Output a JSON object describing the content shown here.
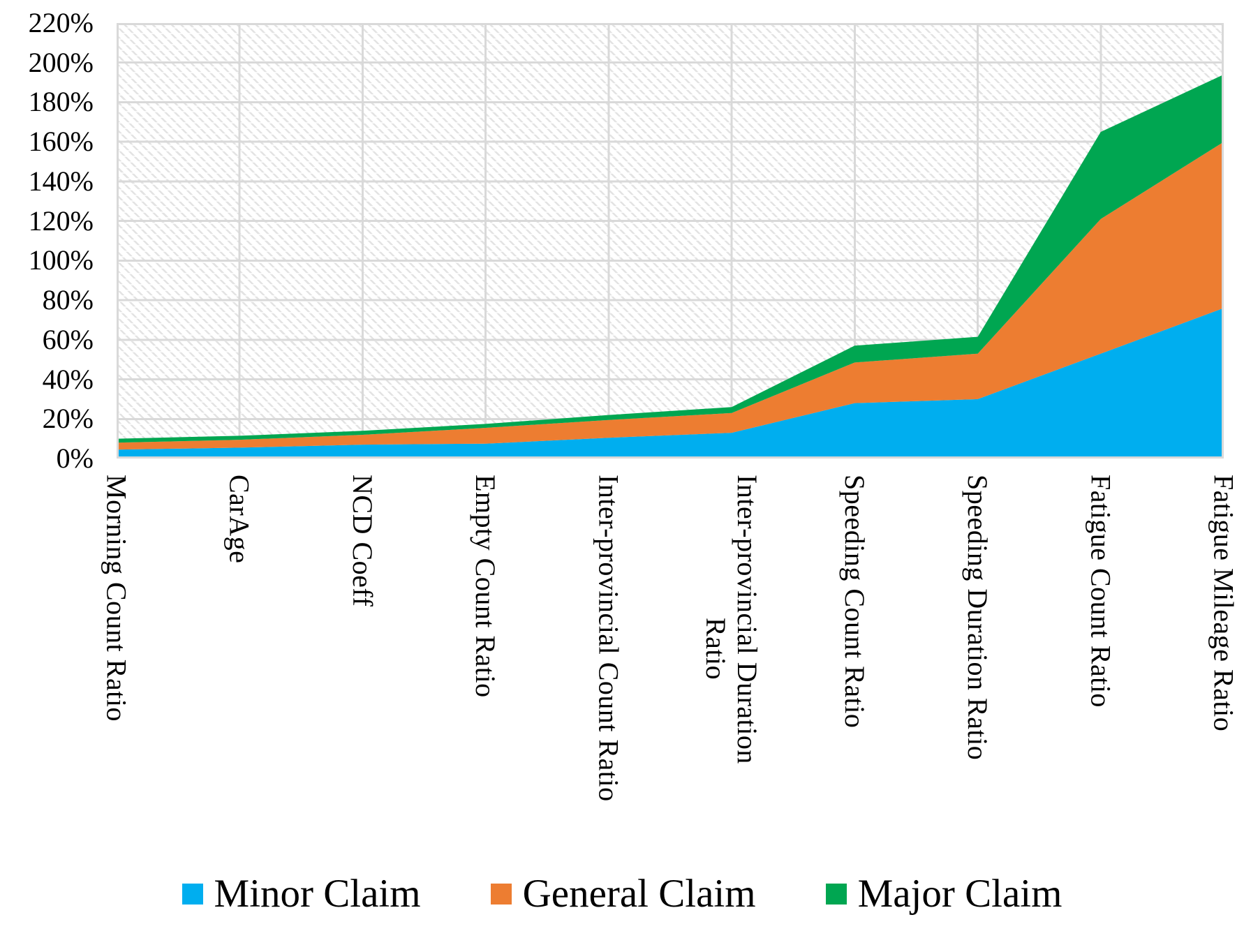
{
  "chart_data": {
    "type": "area",
    "stacked": true,
    "title": "",
    "categories": [
      "Morning Count Ratio",
      "CarAge",
      "NCD Coeff",
      "Empty Count Ratio",
      "Inter-provincial Count Ratio",
      "Inter-provincial Duration\nRatio",
      "Speeding Count Ratio",
      "Speeding Duration Ratio",
      "Fatigue Count Ratio",
      "Fatigue Mileage Ratio"
    ],
    "series": [
      {
        "name": "Minor Claim",
        "color": "#00AEEF",
        "values": [
          4.5,
          5.5,
          7,
          7.5,
          10.5,
          13,
          28,
          30,
          53,
          76
        ]
      },
      {
        "name": "General Claim",
        "color": "#ED7D31",
        "values": [
          3.5,
          4,
          5,
          8,
          9,
          10,
          20.5,
          23,
          68,
          84
        ]
      },
      {
        "name": "Major Claim",
        "color": "#00A651",
        "values": [
          2,
          2,
          2,
          2,
          2.5,
          3,
          8.5,
          8.5,
          44,
          34
        ]
      }
    ],
    "y_axis": {
      "min": 0,
      "max": 220,
      "step": 20,
      "tick_labels_top_to_bottom": [
        "220%",
        "200%",
        "180%",
        "160%",
        "140%",
        "120%",
        "100%",
        "80%",
        "60%",
        "40%",
        "20%",
        "0%"
      ]
    },
    "grid": {
      "horizontal": true,
      "vertical": true,
      "color": "#D9D9D9",
      "plot_background": "diagonal-hatch"
    },
    "legend_position": "bottom"
  }
}
